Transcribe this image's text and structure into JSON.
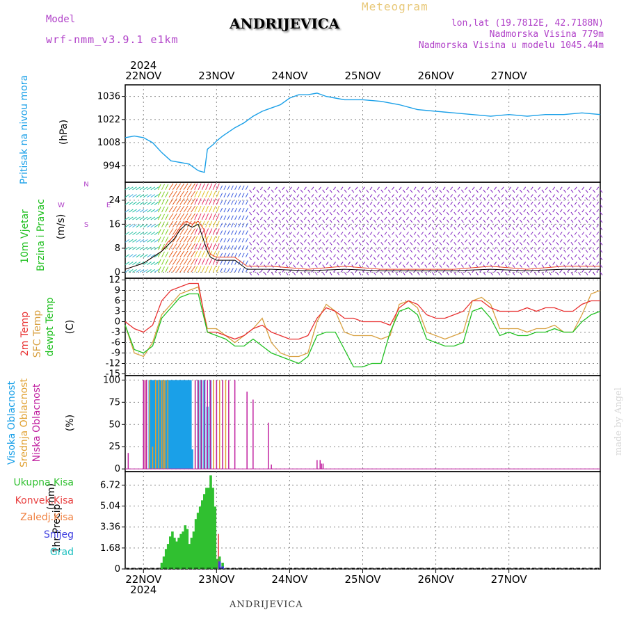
{
  "header": {
    "model_label": "Model",
    "model_name": "wrf-nmm_v3.9.1  e1km",
    "city": "ANDRIJEVICA",
    "meteogram": "Meteogram",
    "lonlat": "lon,lat (19.7812E, 42.7188N)",
    "altitude": "Nadmorska Visina 779m",
    "model_altitude": "Nadmorska Visina u modelu 1045.44m"
  },
  "footer": {
    "city": "ANDRIJEVICA",
    "made_by": "made by Angel"
  },
  "time_axis": {
    "year": "2024",
    "days": [
      "22NOV",
      "23NOV",
      "24NOV",
      "25NOV",
      "26NOV",
      "27NOV"
    ],
    "start_hours_before_22NOV": 6,
    "end_hours_after_27NOV": 6
  },
  "colors": {
    "pressure": "#1aa0e8",
    "wind_speed": "#000000",
    "wind_gust": "#e84020",
    "temp2m": "#e83030",
    "sfc": "#d8a040",
    "dewpt": "#20c020",
    "high_cloud": "#1aa0e8",
    "mid_cloud": "#e0a030",
    "low_cloud": "#c020a0",
    "total_precip": "#30c030",
    "conv_precip": "#e84040",
    "frz_precip": "#f08040",
    "snow": "#4040e0",
    "graupel": "#20c0c0"
  },
  "chart_data": [
    {
      "type": "line",
      "name": "pressure",
      "ylabel_main": "Pritisak na nivou mora",
      "ylabel_unit": "(hPa)",
      "yticks": [
        994,
        1008,
        1022,
        1036
      ],
      "ylim": [
        984,
        1043
      ],
      "x_hours": [
        0,
        3,
        6,
        9,
        12,
        15,
        18,
        21,
        24,
        26,
        27,
        29,
        30,
        32,
        36,
        39,
        42,
        45,
        48,
        51,
        54,
        57,
        60,
        63,
        66,
        69,
        72,
        78,
        84,
        90,
        96,
        102,
        108,
        114,
        120,
        126,
        132,
        138,
        144,
        150,
        156
      ],
      "values": [
        1011,
        1012,
        1011,
        1008,
        1002,
        997,
        996,
        995,
        991,
        990,
        1004,
        1007,
        1009,
        1012,
        1017,
        1020,
        1024,
        1027,
        1029,
        1031,
        1035,
        1037,
        1037,
        1038,
        1036,
        1035,
        1034,
        1034,
        1033,
        1031,
        1028,
        1027,
        1026,
        1025,
        1024,
        1025,
        1024,
        1025,
        1025,
        1026,
        1025
      ],
      "grid": true
    },
    {
      "type": "line",
      "name": "wind",
      "ylabel_main": "10m Vjetar",
      "ylabel_sub": "Brzina i Pravac",
      "ylabel_unit": "(m/s)",
      "compass_n": "N",
      "compass_s": "S",
      "compass_w": "W",
      "compass_e": "E",
      "yticks": [
        0,
        8,
        16,
        24
      ],
      "ylim": [
        -2,
        30
      ],
      "x_hours": [
        0,
        3,
        6,
        9,
        12,
        14,
        16,
        18,
        20,
        22,
        24,
        26,
        27,
        28,
        30,
        32,
        34,
        36,
        40,
        48,
        60,
        72,
        84,
        96,
        108,
        120,
        132,
        144,
        156
      ],
      "speed": [
        1,
        2,
        3,
        5,
        7,
        9,
        11,
        14,
        16,
        15,
        16,
        10,
        7,
        5,
        4,
        4,
        4,
        4,
        1,
        1,
        0.5,
        1,
        0.5,
        0.5,
        0.5,
        1,
        0.5,
        1,
        1
      ],
      "gust": [
        1,
        2,
        3,
        5,
        7,
        10,
        12,
        15,
        17,
        16,
        17,
        14,
        9,
        6,
        5,
        5,
        5,
        5,
        2,
        2,
        1,
        2,
        1,
        1,
        1,
        2,
        1,
        2,
        2
      ],
      "grid": true
    },
    {
      "type": "line",
      "name": "temperature",
      "ylabel_main": "2m Temp",
      "ylabel_sub": "SFC Temp",
      "ylabel_sub2": "dewpt Temp",
      "ylabel_unit": "(C)",
      "yticks": [
        -15,
        -12,
        -9,
        -6,
        -3,
        0,
        3,
        6,
        9,
        12
      ],
      "ylim": [
        -15.5,
        12.5
      ],
      "x_hours": [
        0,
        3,
        6,
        9,
        12,
        15,
        18,
        21,
        24,
        27,
        30,
        33,
        36,
        39,
        42,
        45,
        48,
        51,
        54,
        57,
        60,
        63,
        66,
        69,
        72,
        75,
        78,
        81,
        84,
        87,
        90,
        93,
        96,
        99,
        102,
        105,
        108,
        111,
        114,
        117,
        120,
        123,
        126,
        129,
        132,
        135,
        138,
        141,
        144,
        147,
        150,
        153,
        156
      ],
      "temp2m": [
        0,
        -2,
        -3,
        -1,
        6,
        9,
        10,
        11,
        11,
        -3,
        -3,
        -4,
        -5,
        -4,
        -2,
        -1,
        -3,
        -4,
        -5,
        -5,
        -4,
        1,
        4,
        3,
        1,
        1,
        0,
        0,
        0,
        -1,
        4,
        6,
        5,
        2,
        1,
        1,
        2,
        3,
        6,
        6,
        4,
        3,
        3,
        3,
        4,
        3,
        4,
        4,
        3,
        3,
        5,
        6,
        6
      ],
      "sfc": [
        -1,
        -9,
        -10,
        -6,
        2,
        5,
        8,
        9,
        10,
        -2,
        -2,
        -4,
        -6,
        -4,
        -2,
        1,
        -6,
        -9,
        -10,
        -10,
        -9,
        0,
        5,
        3,
        -3,
        -4,
        -4,
        -4,
        -5,
        -4,
        5,
        6,
        4,
        -3,
        -4,
        -5,
        -4,
        -3,
        6,
        7,
        5,
        -2,
        -2,
        -2,
        -3,
        -2,
        -2,
        -1,
        -3,
        -3,
        2,
        8,
        9
      ],
      "dewpt": [
        -1,
        -8,
        -9,
        -7,
        1,
        4,
        7,
        8,
        8,
        -3,
        -4,
        -5,
        -7,
        -7,
        -5,
        -7,
        -9,
        -10,
        -11,
        -12,
        -10,
        -4,
        -3,
        -3,
        -8,
        -13,
        -13,
        -12,
        -12,
        -3,
        3,
        4,
        2,
        -5,
        -6,
        -7,
        -7,
        -6,
        3,
        4,
        1,
        -4,
        -3,
        -4,
        -4,
        -3,
        -3,
        -2,
        -3,
        -3,
        0,
        2,
        3
      ],
      "grid": true
    },
    {
      "type": "bar",
      "name": "cloud_cover",
      "ylabel_main": "Visoka Oblacnost",
      "ylabel_sub": "Srednja Oblacnost",
      "ylabel_sub2": "Niska Oblacnost",
      "ylabel_unit": "(%)",
      "yticks": [
        0,
        25,
        50,
        75,
        100
      ],
      "ylim": [
        -3,
        105
      ],
      "series": [
        {
          "name": "Visoka Oblacnost",
          "x_hours": [
            8,
            8.5,
            9,
            9.5,
            10,
            10.5,
            11,
            11.5,
            12,
            12.5,
            13,
            13.5,
            14,
            14.5,
            15,
            15.5,
            16,
            16.5,
            17,
            17.5,
            18,
            18.5,
            19,
            19.5,
            20,
            20.5,
            21,
            21.5,
            22,
            22.5,
            23,
            24,
            25,
            26,
            27,
            28
          ],
          "values": [
            100,
            100,
            100,
            100,
            100,
            100,
            100,
            100,
            100,
            100,
            100,
            100,
            100,
            100,
            100,
            100,
            100,
            100,
            100,
            100,
            100,
            100,
            100,
            100,
            100,
            100,
            100,
            100,
            22,
            0,
            0,
            100,
            100,
            100,
            70,
            100
          ]
        },
        {
          "name": "Srednja Oblacnost",
          "x_hours": [
            6,
            6.5,
            7,
            8,
            9,
            10,
            11,
            12,
            12.5,
            13,
            14,
            23,
            24,
            25,
            26,
            27,
            28,
            29,
            30,
            31,
            32,
            33
          ],
          "values": [
            100,
            100,
            100,
            100,
            25,
            100,
            100,
            100,
            100,
            100,
            100,
            100,
            100,
            100,
            35,
            100,
            100,
            100,
            100,
            100,
            100,
            100
          ]
        },
        {
          "name": "Niska Oblacnost",
          "x_hours": [
            1,
            6,
            6.5,
            7,
            23,
            24,
            25,
            26,
            27,
            28,
            30,
            32,
            34,
            36,
            40,
            42,
            47,
            48,
            63,
            64,
            64.5,
            65
          ],
          "values": [
            18,
            100,
            100,
            100,
            100,
            100,
            100,
            100,
            100,
            100,
            100,
            100,
            100,
            100,
            87,
            78,
            52,
            5,
            10,
            10,
            6,
            6
          ]
        }
      ],
      "grid": true
    },
    {
      "type": "bar",
      "name": "precipitation",
      "ylabel_main": "1hr Precip",
      "ylabel_unit": "(mm)",
      "legend": [
        "Ukupna Kisa",
        "Konvek.Kisa",
        "Zaledj.Kisa",
        "Snijeg",
        "Grad"
      ],
      "yticks": [
        0,
        1.68,
        3.36,
        5.04,
        6.72
      ],
      "ylim": [
        0,
        7.8
      ],
      "x_hours": [
        12,
        12.7,
        13.4,
        14.1,
        14.8,
        15.5,
        16.2,
        16.9,
        17.6,
        18.3,
        19,
        19.7,
        20.4,
        21.1,
        21.8,
        22.5,
        23.2,
        23.9,
        24.6,
        25.3,
        26,
        26.7,
        27.4,
        28.1,
        28.8,
        29.5,
        30.2,
        31,
        32
      ],
      "values": [
        0.5,
        1,
        1.6,
        2,
        2.6,
        3,
        2.5,
        2.2,
        2.5,
        2.8,
        3,
        3.5,
        3.2,
        2,
        2.5,
        3,
        4,
        4.5,
        5,
        5.5,
        6,
        6.5,
        6.5,
        7.5,
        6.5,
        5,
        0.8,
        1,
        0.5
      ],
      "convective": [
        0,
        0,
        0,
        0,
        0,
        0,
        0,
        0,
        0,
        0,
        0,
        0,
        0,
        0,
        0,
        0,
        0,
        0,
        0,
        0,
        0,
        0,
        0,
        0,
        0,
        0,
        2.8,
        0,
        0
      ],
      "snow": [
        0,
        0,
        0,
        0,
        0,
        0,
        0,
        0,
        0,
        0,
        0,
        0,
        0,
        0,
        0,
        0,
        0,
        0,
        0,
        0,
        0,
        0,
        0,
        0,
        0,
        0,
        0,
        0.6,
        0.2
      ],
      "grid": true
    }
  ]
}
